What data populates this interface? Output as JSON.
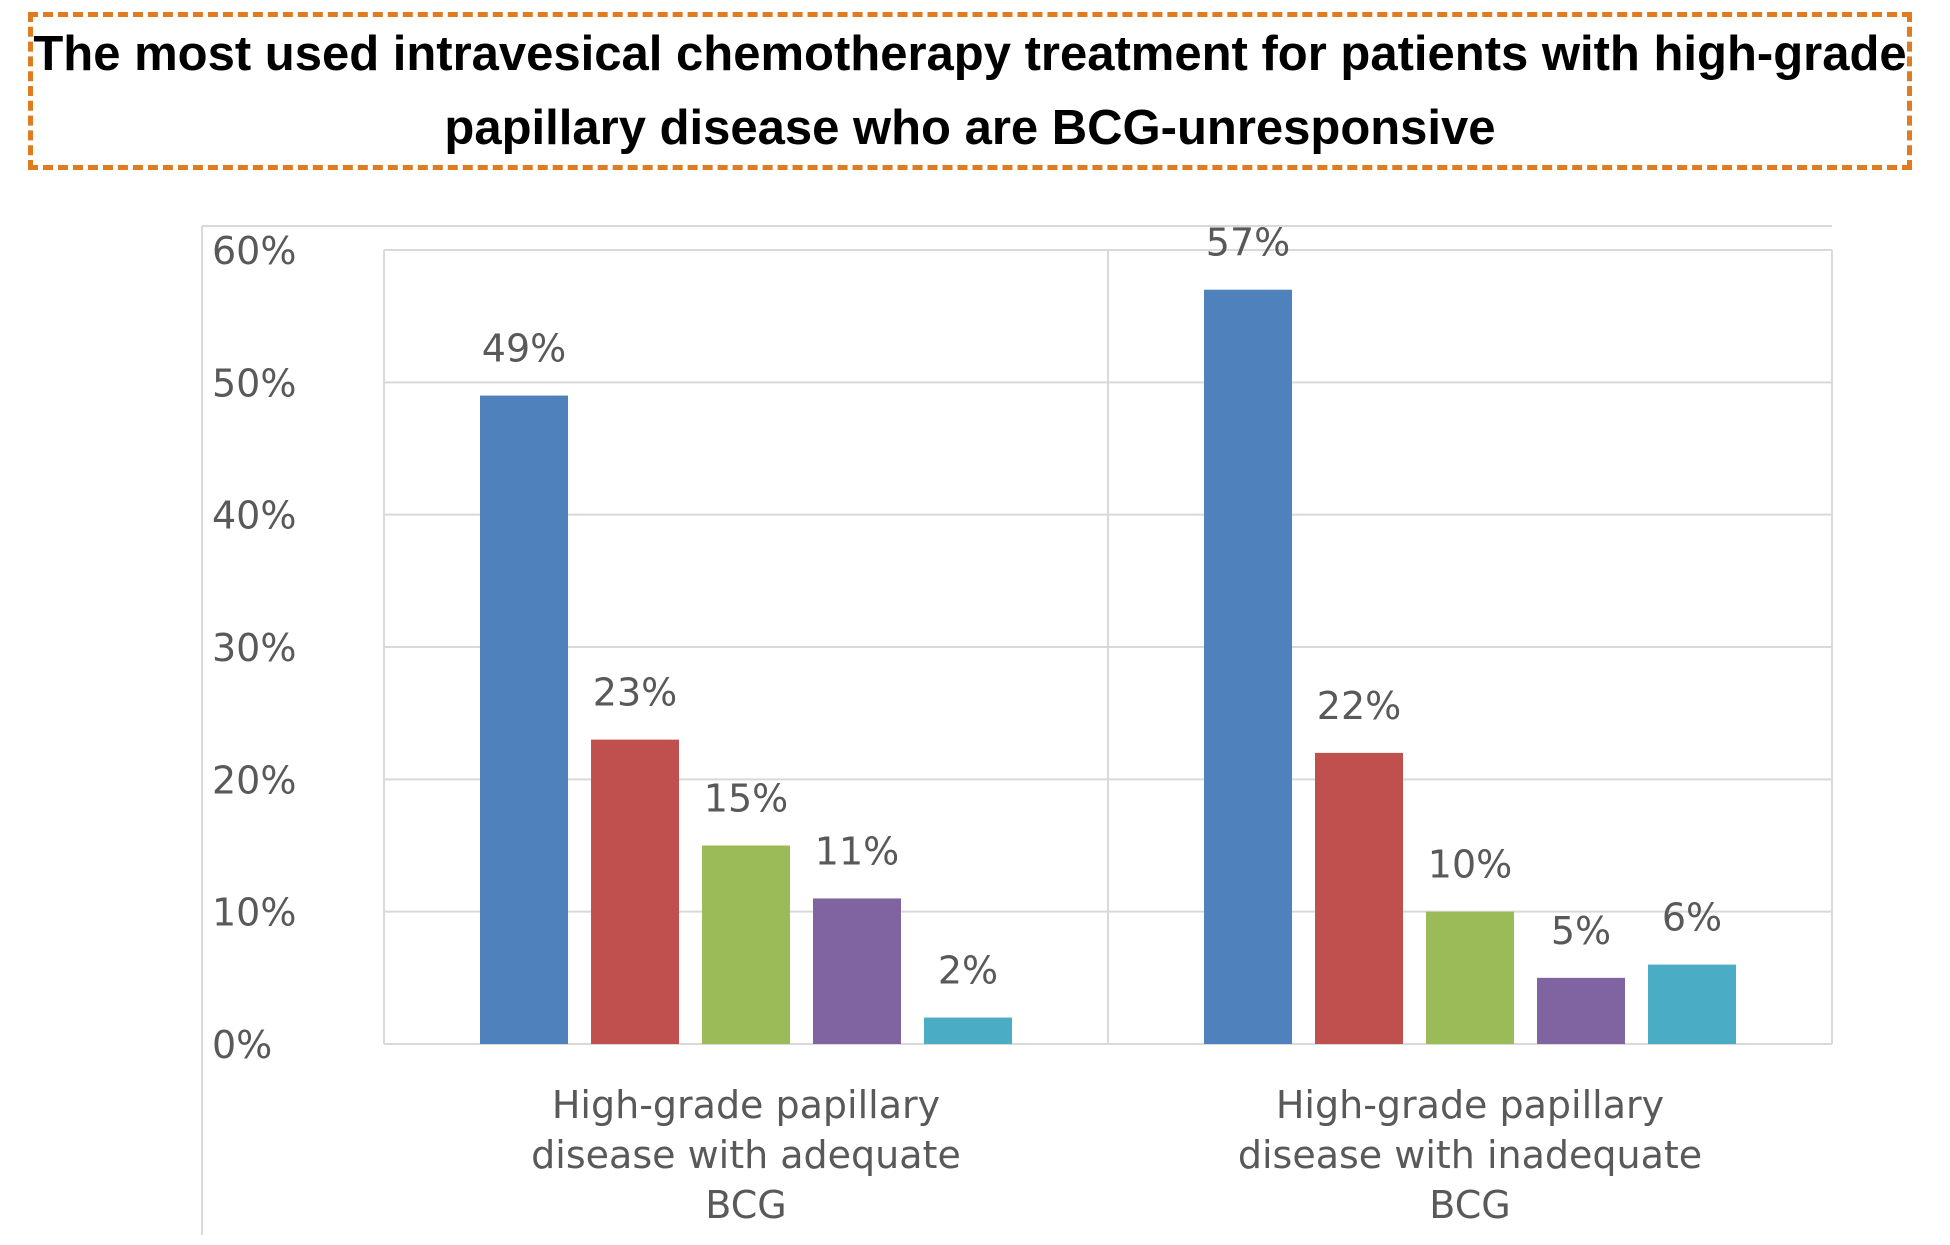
{
  "title": "The most used intravesical chemotherapy treatment for patients with high-grade papillary disease who are BCG-unresponsive",
  "chart_data": {
    "type": "bar",
    "categories": [
      [
        "High-grade papillary",
        "disease with adequate",
        "BCG"
      ],
      [
        "High-grade papillary",
        "disease with inadequate",
        "BCG"
      ]
    ],
    "series": [
      {
        "values": [
          49,
          57
        ],
        "color": "#4f81bd"
      },
      {
        "values": [
          23,
          22
        ],
        "color": "#c0504d"
      },
      {
        "values": [
          15,
          10
        ],
        "color": "#9bbb59"
      },
      {
        "values": [
          11,
          5
        ],
        "color": "#8064a2"
      },
      {
        "values": [
          2,
          6
        ],
        "color": "#4bacc6"
      }
    ],
    "data_labels": [
      [
        "49%",
        "57%"
      ],
      [
        "23%",
        "22%"
      ],
      [
        "15%",
        "10%"
      ],
      [
        "11%",
        "5%"
      ],
      [
        "2%",
        "6%"
      ]
    ],
    "yticks": [
      "0%",
      "10%",
      "20%",
      "30%",
      "40%",
      "50%",
      "60%"
    ],
    "ylim": [
      0,
      60
    ],
    "grid": true,
    "colors": {
      "grid": "#d9d9d9",
      "axis_text": "#595959",
      "title_border": "#e07b20"
    }
  }
}
